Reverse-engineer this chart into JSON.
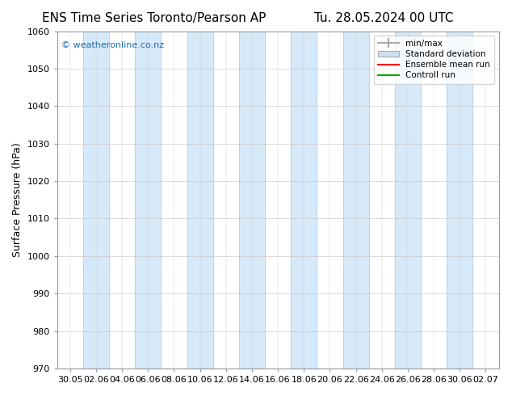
{
  "title_left": "ENS Time Series Toronto/Pearson AP",
  "title_right": "Tu. 28.05.2024 00 UTC",
  "ylabel": "Surface Pressure (hPa)",
  "ylim": [
    970,
    1060
  ],
  "yticks": [
    970,
    980,
    990,
    1000,
    1010,
    1020,
    1030,
    1040,
    1050,
    1060
  ],
  "x_tick_labels": [
    "30.05",
    "02.06",
    "04.06",
    "06.06",
    "08.06",
    "10.06",
    "12.06",
    "14.06",
    "16.06",
    "18.06",
    "20.06",
    "22.06",
    "24.06",
    "26.06",
    "28.06",
    "30.06",
    "02.07"
  ],
  "watermark": "© weatheronline.co.nz",
  "legend_entries": [
    "min/max",
    "Standard deviation",
    "Ensemble mean run",
    "Controll run"
  ],
  "band_color": "#d6e9f8",
  "band_edge_color": "#b0cce8",
  "background_color": "#ffffff",
  "plot_bg_color": "#ffffff",
  "title_fontsize": 11,
  "axis_fontsize": 9,
  "tick_fontsize": 8,
  "watermark_color": "#1a6eb5",
  "ensemble_mean_color": "#ff0000",
  "control_run_color": "#00aa00",
  "band_positions": [
    1,
    3,
    5,
    7,
    9,
    11,
    13,
    15
  ],
  "n_ticks": 17
}
